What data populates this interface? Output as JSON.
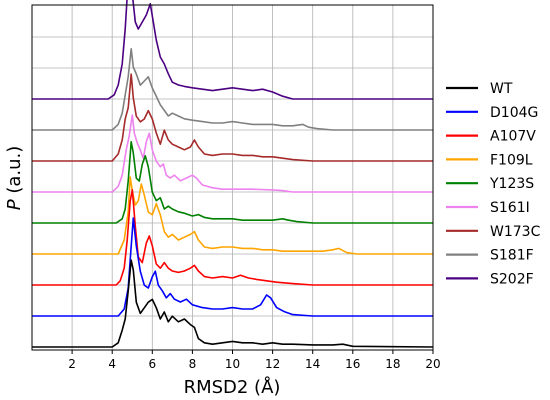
{
  "chart_data": {
    "type": "line",
    "xlabel": "RMSD2 (Å)",
    "ylabel": "P (a.u.)",
    "xlim": [
      0,
      20
    ],
    "x_ticks": [
      2,
      4,
      6,
      8,
      10,
      12,
      14,
      16,
      18,
      20
    ],
    "grid": true,
    "legend_position": "right",
    "series": [
      {
        "name": "WT",
        "color": "#000000",
        "points": [
          [
            0,
            0
          ],
          [
            4.0,
            0
          ],
          [
            4.3,
            0.03
          ],
          [
            4.5,
            0.12
          ],
          [
            4.65,
            0.2
          ],
          [
            4.8,
            0.4
          ],
          [
            4.95,
            0.62
          ],
          [
            5.05,
            0.55
          ],
          [
            5.2,
            0.32
          ],
          [
            5.4,
            0.24
          ],
          [
            5.6,
            0.28
          ],
          [
            5.8,
            0.32
          ],
          [
            6.0,
            0.34
          ],
          [
            6.2,
            0.28
          ],
          [
            6.4,
            0.2
          ],
          [
            6.6,
            0.25
          ],
          [
            6.8,
            0.18
          ],
          [
            7.0,
            0.22
          ],
          [
            7.3,
            0.18
          ],
          [
            7.6,
            0.2
          ],
          [
            7.9,
            0.16
          ],
          [
            8.1,
            0.14
          ],
          [
            8.3,
            0.06
          ],
          [
            8.6,
            0.03
          ],
          [
            9.0,
            0.02
          ],
          [
            9.5,
            0.03
          ],
          [
            10.0,
            0.04
          ],
          [
            10.5,
            0.03
          ],
          [
            11.0,
            0.03
          ],
          [
            11.5,
            0.02
          ],
          [
            12.0,
            0.03
          ],
          [
            12.5,
            0.02
          ],
          [
            13.0,
            0.02
          ],
          [
            14.0,
            0.015
          ],
          [
            15.0,
            0.015
          ],
          [
            15.5,
            0.02
          ],
          [
            16.0,
            0.005
          ],
          [
            20,
            0
          ]
        ]
      },
      {
        "name": "D104G",
        "color": "#0000ff",
        "points": [
          [
            0,
            0
          ],
          [
            4.3,
            0
          ],
          [
            4.6,
            0.05
          ],
          [
            4.8,
            0.2
          ],
          [
            4.95,
            0.5
          ],
          [
            5.05,
            0.7
          ],
          [
            5.2,
            0.5
          ],
          [
            5.4,
            0.32
          ],
          [
            5.6,
            0.22
          ],
          [
            5.8,
            0.2
          ],
          [
            6.0,
            0.28
          ],
          [
            6.15,
            0.32
          ],
          [
            6.3,
            0.22
          ],
          [
            6.5,
            0.18
          ],
          [
            6.7,
            0.13
          ],
          [
            6.9,
            0.16
          ],
          [
            7.1,
            0.12
          ],
          [
            7.4,
            0.1
          ],
          [
            7.7,
            0.12
          ],
          [
            8.0,
            0.08
          ],
          [
            8.5,
            0.06
          ],
          [
            9.0,
            0.05
          ],
          [
            9.5,
            0.05
          ],
          [
            10.0,
            0.06
          ],
          [
            10.5,
            0.05
          ],
          [
            11.0,
            0.05
          ],
          [
            11.4,
            0.08
          ],
          [
            11.7,
            0.15
          ],
          [
            11.9,
            0.13
          ],
          [
            12.2,
            0.06
          ],
          [
            12.6,
            0.03
          ],
          [
            13.0,
            0.01
          ],
          [
            14,
            0
          ],
          [
            20,
            0
          ]
        ]
      },
      {
        "name": "A107V",
        "color": "#ff0000",
        "points": [
          [
            0,
            0
          ],
          [
            4.2,
            0
          ],
          [
            4.4,
            0.03
          ],
          [
            4.6,
            0.12
          ],
          [
            4.75,
            0.32
          ],
          [
            4.9,
            0.6
          ],
          [
            5.0,
            0.68
          ],
          [
            5.15,
            0.42
          ],
          [
            5.3,
            0.2
          ],
          [
            5.5,
            0.16
          ],
          [
            5.7,
            0.3
          ],
          [
            5.85,
            0.35
          ],
          [
            6.0,
            0.28
          ],
          [
            6.2,
            0.15
          ],
          [
            6.4,
            0.12
          ],
          [
            6.6,
            0.16
          ],
          [
            6.8,
            0.12
          ],
          [
            7.0,
            0.1
          ],
          [
            7.3,
            0.09
          ],
          [
            7.6,
            0.1
          ],
          [
            7.9,
            0.12
          ],
          [
            8.1,
            0.14
          ],
          [
            8.3,
            0.1
          ],
          [
            8.6,
            0.06
          ],
          [
            9.0,
            0.05
          ],
          [
            9.5,
            0.06
          ],
          [
            10.0,
            0.05
          ],
          [
            10.4,
            0.07
          ],
          [
            10.8,
            0.05
          ],
          [
            11.2,
            0.04
          ],
          [
            11.7,
            0.03
          ],
          [
            12.2,
            0.02
          ],
          [
            13.0,
            0.01
          ],
          [
            14,
            0
          ],
          [
            20,
            0
          ]
        ]
      },
      {
        "name": "F109L",
        "color": "#ffa500",
        "points": [
          [
            0,
            0
          ],
          [
            4.3,
            0
          ],
          [
            4.6,
            0.1
          ],
          [
            4.8,
            0.3
          ],
          [
            4.9,
            0.55
          ],
          [
            5.0,
            0.45
          ],
          [
            5.15,
            0.35
          ],
          [
            5.3,
            0.38
          ],
          [
            5.45,
            0.5
          ],
          [
            5.6,
            0.42
          ],
          [
            5.8,
            0.3
          ],
          [
            6.0,
            0.28
          ],
          [
            6.2,
            0.36
          ],
          [
            6.4,
            0.28
          ],
          [
            6.6,
            0.16
          ],
          [
            6.8,
            0.12
          ],
          [
            7.0,
            0.14
          ],
          [
            7.3,
            0.1
          ],
          [
            7.6,
            0.12
          ],
          [
            7.9,
            0.14
          ],
          [
            8.1,
            0.16
          ],
          [
            8.3,
            0.1
          ],
          [
            8.6,
            0.05
          ],
          [
            9.0,
            0.04
          ],
          [
            9.5,
            0.05
          ],
          [
            10.0,
            0.05
          ],
          [
            10.5,
            0.04
          ],
          [
            11.0,
            0.04
          ],
          [
            11.5,
            0.03
          ],
          [
            12.0,
            0.03
          ],
          [
            12.5,
            0.02
          ],
          [
            13.0,
            0.02
          ],
          [
            14.0,
            0.02
          ],
          [
            14.5,
            0.02
          ],
          [
            15.0,
            0.03
          ],
          [
            15.3,
            0.04
          ],
          [
            15.7,
            0.01
          ],
          [
            16.2,
            0
          ],
          [
            20,
            0
          ]
        ]
      },
      {
        "name": "Y123S",
        "color": "#008000",
        "points": [
          [
            0,
            0
          ],
          [
            4.2,
            0
          ],
          [
            4.5,
            0.03
          ],
          [
            4.65,
            0.1
          ],
          [
            4.8,
            0.3
          ],
          [
            4.95,
            0.58
          ],
          [
            5.05,
            0.5
          ],
          [
            5.2,
            0.32
          ],
          [
            5.35,
            0.3
          ],
          [
            5.5,
            0.42
          ],
          [
            5.65,
            0.48
          ],
          [
            5.8,
            0.4
          ],
          [
            6.0,
            0.22
          ],
          [
            6.2,
            0.16
          ],
          [
            6.4,
            0.18
          ],
          [
            6.6,
            0.1
          ],
          [
            6.8,
            0.12
          ],
          [
            7.0,
            0.1
          ],
          [
            7.3,
            0.08
          ],
          [
            7.6,
            0.07
          ],
          [
            8.0,
            0.05
          ],
          [
            8.3,
            0.06
          ],
          [
            8.6,
            0.04
          ],
          [
            9.0,
            0.03
          ],
          [
            9.5,
            0.03
          ],
          [
            10.0,
            0.03
          ],
          [
            10.5,
            0.02
          ],
          [
            11.0,
            0.02
          ],
          [
            11.5,
            0.02
          ],
          [
            12.0,
            0.02
          ],
          [
            12.5,
            0.03
          ],
          [
            12.8,
            0.02
          ],
          [
            13.2,
            0.01
          ],
          [
            14,
            0
          ],
          [
            20,
            0
          ]
        ]
      },
      {
        "name": "S161I",
        "color": "#ee82ee",
        "points": [
          [
            0,
            0
          ],
          [
            4.0,
            0
          ],
          [
            4.3,
            0.04
          ],
          [
            4.5,
            0.12
          ],
          [
            4.7,
            0.3
          ],
          [
            4.85,
            0.4
          ],
          [
            5.0,
            0.55
          ],
          [
            5.1,
            0.42
          ],
          [
            5.25,
            0.35
          ],
          [
            5.4,
            0.3
          ],
          [
            5.55,
            0.24
          ],
          [
            5.7,
            0.36
          ],
          [
            5.85,
            0.42
          ],
          [
            6.0,
            0.3
          ],
          [
            6.2,
            0.22
          ],
          [
            6.4,
            0.18
          ],
          [
            6.55,
            0.2
          ],
          [
            6.7,
            0.12
          ],
          [
            6.9,
            0.1
          ],
          [
            7.1,
            0.12
          ],
          [
            7.4,
            0.08
          ],
          [
            7.7,
            0.1
          ],
          [
            8.0,
            0.12
          ],
          [
            8.2,
            0.1
          ],
          [
            8.5,
            0.05
          ],
          [
            9.0,
            0.03
          ],
          [
            9.5,
            0.02
          ],
          [
            10.0,
            0.02
          ],
          [
            11.0,
            0.02
          ],
          [
            12.0,
            0.015
          ],
          [
            12.5,
            0.01
          ],
          [
            13,
            0
          ],
          [
            20,
            0
          ]
        ]
      },
      {
        "name": "W173C",
        "color": "#a52a2a",
        "points": [
          [
            0,
            0
          ],
          [
            4.0,
            0
          ],
          [
            4.3,
            0.05
          ],
          [
            4.5,
            0.15
          ],
          [
            4.65,
            0.3
          ],
          [
            4.8,
            0.38
          ],
          [
            4.95,
            0.62
          ],
          [
            5.05,
            0.45
          ],
          [
            5.2,
            0.32
          ],
          [
            5.4,
            0.28
          ],
          [
            5.6,
            0.3
          ],
          [
            5.8,
            0.36
          ],
          [
            6.0,
            0.3
          ],
          [
            6.2,
            0.2
          ],
          [
            6.4,
            0.12
          ],
          [
            6.6,
            0.22
          ],
          [
            6.8,
            0.15
          ],
          [
            7.0,
            0.12
          ],
          [
            7.3,
            0.1
          ],
          [
            7.6,
            0.08
          ],
          [
            7.9,
            0.1
          ],
          [
            8.1,
            0.15
          ],
          [
            8.3,
            0.1
          ],
          [
            8.6,
            0.05
          ],
          [
            9.0,
            0.04
          ],
          [
            9.5,
            0.05
          ],
          [
            10.0,
            0.05
          ],
          [
            10.5,
            0.04
          ],
          [
            11.0,
            0.04
          ],
          [
            11.5,
            0.03
          ],
          [
            12.0,
            0.03
          ],
          [
            12.5,
            0.02
          ],
          [
            13.0,
            0.01
          ],
          [
            14,
            0
          ],
          [
            20,
            0
          ]
        ]
      },
      {
        "name": "S181F",
        "color": "#808080",
        "points": [
          [
            0,
            0
          ],
          [
            4.0,
            0
          ],
          [
            4.3,
            0.04
          ],
          [
            4.5,
            0.12
          ],
          [
            4.65,
            0.25
          ],
          [
            4.8,
            0.38
          ],
          [
            4.95,
            0.58
          ],
          [
            5.05,
            0.45
          ],
          [
            5.2,
            0.4
          ],
          [
            5.4,
            0.32
          ],
          [
            5.6,
            0.35
          ],
          [
            5.8,
            0.38
          ],
          [
            6.0,
            0.3
          ],
          [
            6.2,
            0.24
          ],
          [
            6.4,
            0.18
          ],
          [
            6.6,
            0.14
          ],
          [
            6.8,
            0.1
          ],
          [
            7.0,
            0.12
          ],
          [
            7.3,
            0.1
          ],
          [
            7.6,
            0.08
          ],
          [
            8.0,
            0.07
          ],
          [
            8.5,
            0.06
          ],
          [
            9.0,
            0.05
          ],
          [
            9.5,
            0.05
          ],
          [
            10.0,
            0.06
          ],
          [
            10.5,
            0.05
          ],
          [
            11.0,
            0.04
          ],
          [
            11.5,
            0.04
          ],
          [
            12.0,
            0.04
          ],
          [
            12.5,
            0.03
          ],
          [
            13.0,
            0.03
          ],
          [
            13.5,
            0.04
          ],
          [
            13.8,
            0.02
          ],
          [
            14.2,
            0.01
          ],
          [
            15,
            0
          ],
          [
            20,
            0
          ]
        ]
      },
      {
        "name": "S202F",
        "color": "#4b0082",
        "points": [
          [
            0,
            0
          ],
          [
            3.8,
            0
          ],
          [
            4.1,
            0.03
          ],
          [
            4.3,
            0.1
          ],
          [
            4.5,
            0.25
          ],
          [
            4.65,
            0.5
          ],
          [
            4.8,
            0.85
          ],
          [
            4.9,
            1.0
          ],
          [
            5.0,
            0.75
          ],
          [
            5.15,
            0.55
          ],
          [
            5.3,
            0.5
          ],
          [
            5.5,
            0.55
          ],
          [
            5.7,
            0.6
          ],
          [
            5.9,
            0.68
          ],
          [
            6.05,
            0.55
          ],
          [
            6.2,
            0.42
          ],
          [
            6.4,
            0.3
          ],
          [
            6.6,
            0.25
          ],
          [
            6.8,
            0.18
          ],
          [
            7.0,
            0.12
          ],
          [
            7.3,
            0.1
          ],
          [
            7.6,
            0.09
          ],
          [
            8.0,
            0.08
          ],
          [
            8.5,
            0.07
          ],
          [
            9.0,
            0.06
          ],
          [
            9.5,
            0.07
          ],
          [
            10.0,
            0.08
          ],
          [
            10.5,
            0.07
          ],
          [
            11.0,
            0.06
          ],
          [
            11.5,
            0.07
          ],
          [
            12.0,
            0.05
          ],
          [
            12.5,
            0.02
          ],
          [
            13,
            0
          ],
          [
            20,
            0
          ]
        ]
      }
    ]
  }
}
